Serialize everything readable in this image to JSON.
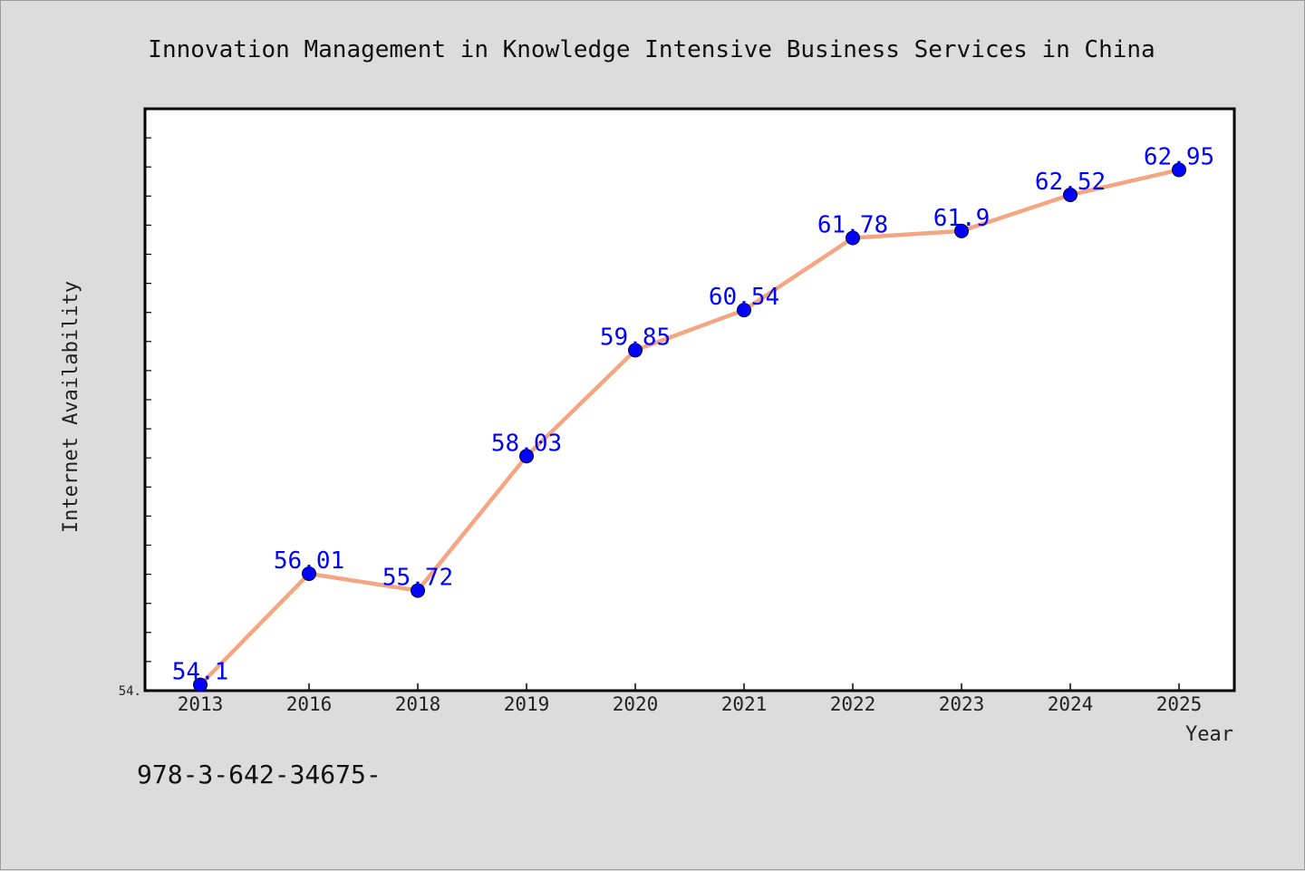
{
  "chart_data": {
    "type": "line",
    "title": "Innovation Management in Knowledge Intensive Business Services in China",
    "xlabel": "Year",
    "ylabel": "Internet Availability",
    "categories": [
      "2013",
      "2016",
      "2018",
      "2019",
      "2020",
      "2021",
      "2022",
      "2023",
      "2024",
      "2025"
    ],
    "series": [
      {
        "values": [
          54.1,
          56.01,
          55.72,
          58.03,
          59.85,
          60.54,
          61.78,
          61.9,
          62.52,
          62.95
        ],
        "data_labels": [
          "54.1",
          "56.01",
          "55.72",
          "58.03",
          "59.85",
          "60.54",
          "61.78",
          "61.9",
          "62.52",
          "62.95"
        ]
      }
    ],
    "ylim": [
      54.0,
      64.0
    ],
    "y_tick_label": "54.",
    "grid": false,
    "legend": "none",
    "colors": {
      "line": "#f4a582",
      "marker": "#0000ff",
      "data_label": "#0000ff",
      "plot_background": "#ffffff",
      "figure_background": "#dcdcdc"
    }
  },
  "footnote": "978-3-642-34675-"
}
